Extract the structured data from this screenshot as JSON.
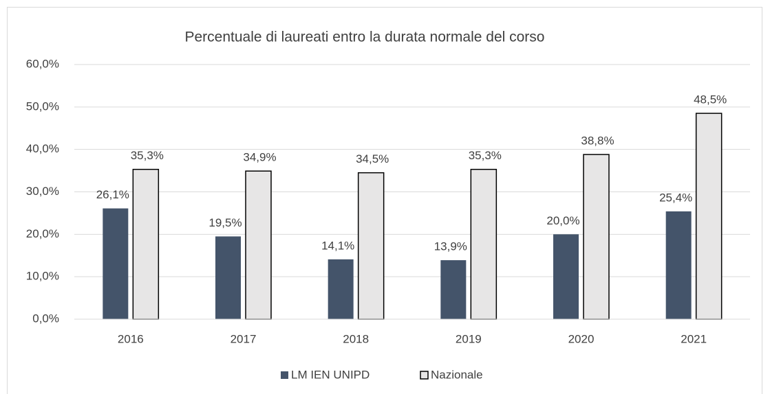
{
  "chart_data": {
    "type": "bar",
    "title": "Percentuale di laureati entro la durata normale del corso",
    "categories": [
      "2016",
      "2017",
      "2018",
      "2019",
      "2020",
      "2021"
    ],
    "series": [
      {
        "name": "LM IEN UNIPD",
        "color": "#44546a",
        "values": [
          26.1,
          19.5,
          14.1,
          13.9,
          20.0,
          25.4
        ],
        "value_labels": [
          "26,1%",
          "19,5%",
          "14,1%",
          "13,9%",
          "20,0%",
          "25,4%"
        ]
      },
      {
        "name": "Nazionale",
        "color": "#e7e6e6",
        "values": [
          35.3,
          34.9,
          34.5,
          35.3,
          38.8,
          48.5
        ],
        "value_labels": [
          "35,3%",
          "34,9%",
          "34,5%",
          "35,3%",
          "38,8%",
          "48,5%"
        ]
      }
    ],
    "ylim": [
      0,
      60
    ],
    "yticks": [
      {
        "value": 0,
        "label": "0,0%"
      },
      {
        "value": 10,
        "label": "10,0%"
      },
      {
        "value": 20,
        "label": "20,0%"
      },
      {
        "value": 30,
        "label": "30,0%"
      },
      {
        "value": 40,
        "label": "40,0%"
      },
      {
        "value": 50,
        "label": "50,0%"
      },
      {
        "value": 60,
        "label": "60,0%"
      }
    ],
    "grid": true,
    "legend": "bottom"
  }
}
